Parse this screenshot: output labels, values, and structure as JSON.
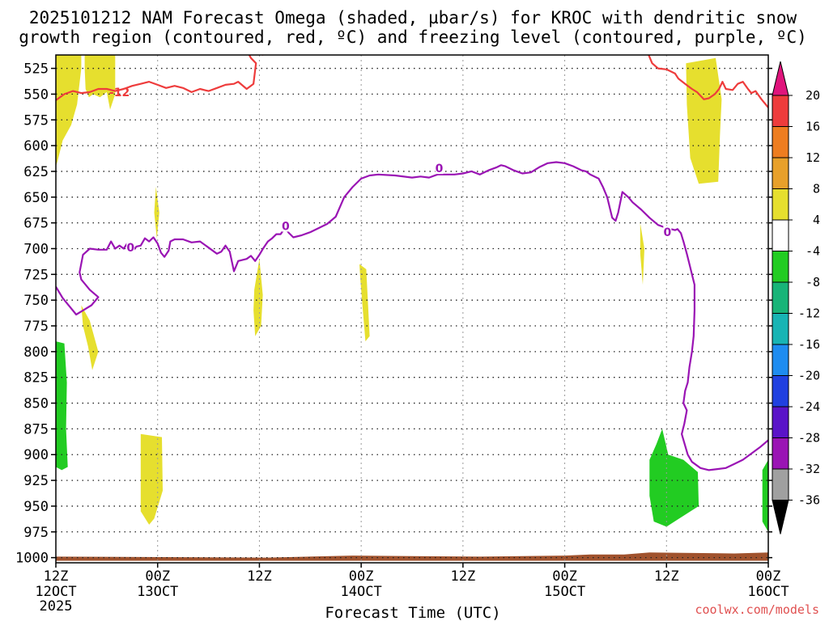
{
  "chart_data": {
    "type": "time-height",
    "title_line1": "2025101212 NAM Forecast Omega (shaded, µbar/s) for KROC with dendritic snow",
    "title_line2": "growth region (contoured, red, ºC) and freezing level (contoured, purple, ºC)",
    "xlabel": "Forecast Time (UTC)",
    "credit": "coolwx.com/models",
    "y_axis": {
      "unit": "hPa",
      "ylim": [
        512,
        1005
      ],
      "ticks": [
        525,
        550,
        575,
        600,
        625,
        650,
        675,
        700,
        725,
        750,
        775,
        800,
        825,
        850,
        875,
        900,
        925,
        950,
        975,
        1000
      ]
    },
    "x_axis": {
      "xlim_hours": [
        0,
        84
      ],
      "ticks": [
        {
          "h": 0,
          "l1": "12Z",
          "l2": "12OCT",
          "l3": "2025"
        },
        {
          "h": 12,
          "l1": "00Z",
          "l2": "13OCT",
          "l3": ""
        },
        {
          "h": 24,
          "l1": "12Z",
          "l2": "",
          "l3": ""
        },
        {
          "h": 36,
          "l1": "00Z",
          "l2": "14OCT",
          "l3": ""
        },
        {
          "h": 48,
          "l1": "12Z",
          "l2": "",
          "l3": ""
        },
        {
          "h": 60,
          "l1": "00Z",
          "l2": "15OCT",
          "l3": ""
        },
        {
          "h": 72,
          "l1": "12Z",
          "l2": "",
          "l3": ""
        },
        {
          "h": 84,
          "l1": "00Z",
          "l2": "16OCT",
          "l3": ""
        }
      ]
    },
    "colorbar": {
      "labels": [
        "20",
        "16",
        "12",
        "8",
        "4",
        "-4",
        "-8",
        "-12",
        "-16",
        "-20",
        "-24",
        "-28",
        "-32",
        "-36"
      ],
      "colors": [
        "#ee3c3c",
        "#ee7d20",
        "#e8a02a",
        "#e6df2e",
        "#ffffff",
        "#22cc22",
        "#18b478",
        "#18b4b4",
        "#1e8cf0",
        "#2040e0",
        "#5a14c8",
        "#9a14b4",
        "#a0a0a0"
      ],
      "top_arrow_color": "#e0147c",
      "bottom_arrow_color": "#000000"
    },
    "omega_regions": [
      {
        "color": "#e6df2e",
        "pts": [
          [
            0,
            512
          ],
          [
            3,
            512
          ],
          [
            3,
            525
          ],
          [
            2.5,
            560
          ],
          [
            1.8,
            580
          ],
          [
            0.8,
            595
          ],
          [
            0.2,
            615
          ],
          [
            0,
            620
          ]
        ]
      },
      {
        "color": "#e6df2e",
        "pts": [
          [
            3.4,
            512
          ],
          [
            7.0,
            512
          ],
          [
            7.0,
            550
          ],
          [
            6.4,
            565
          ],
          [
            6.0,
            548
          ],
          [
            5.2,
            553
          ],
          [
            4.4,
            550
          ],
          [
            3.9,
            553
          ],
          [
            3.5,
            545
          ],
          [
            3.4,
            525
          ]
        ]
      },
      {
        "color": "#e6df2e",
        "pts": [
          [
            3.0,
            755
          ],
          [
            4.0,
            770
          ],
          [
            5.0,
            800
          ],
          [
            4.3,
            818
          ],
          [
            3.8,
            795
          ],
          [
            3.2,
            775
          ]
        ]
      },
      {
        "color": "#e6df2e",
        "pts": [
          [
            11.8,
            640
          ],
          [
            12.2,
            665
          ],
          [
            11.9,
            690
          ],
          [
            11.6,
            665
          ]
        ]
      },
      {
        "color": "#e6df2e",
        "pts": [
          [
            10.0,
            880
          ],
          [
            12.5,
            883
          ],
          [
            12.6,
            935
          ],
          [
            11.6,
            962
          ],
          [
            11.0,
            968
          ],
          [
            10.0,
            955
          ],
          [
            10.0,
            920
          ]
        ]
      },
      {
        "color": "#e6df2e",
        "pts": [
          [
            23.4,
            740
          ],
          [
            24.0,
            710
          ],
          [
            24.4,
            745
          ],
          [
            24.2,
            775
          ],
          [
            23.5,
            785
          ],
          [
            23.3,
            760
          ]
        ]
      },
      {
        "color": "#e6df2e",
        "pts": [
          [
            35.8,
            715
          ],
          [
            36.6,
            720
          ],
          [
            37.0,
            785
          ],
          [
            36.5,
            790
          ],
          [
            36.2,
            760
          ],
          [
            35.9,
            730
          ]
        ]
      },
      {
        "color": "#e6df2e",
        "pts": [
          [
            68.9,
            675
          ],
          [
            69.4,
            700
          ],
          [
            69.2,
            735
          ],
          [
            68.9,
            705
          ]
        ]
      },
      {
        "color": "#e6df2e",
        "pts": [
          [
            74.3,
            520
          ],
          [
            77.8,
            515
          ],
          [
            78.5,
            555
          ],
          [
            78.3,
            590
          ],
          [
            78.1,
            635
          ],
          [
            75.8,
            637
          ],
          [
            74.8,
            612
          ],
          [
            74.4,
            560
          ]
        ]
      },
      {
        "color": "#22cc22",
        "pts": [
          [
            0,
            790
          ],
          [
            1.0,
            792
          ],
          [
            1.3,
            830
          ],
          [
            1.2,
            875
          ],
          [
            1.4,
            912
          ],
          [
            0.7,
            915
          ],
          [
            0,
            912
          ]
        ]
      },
      {
        "color": "#22cc22",
        "pts": [
          [
            70.0,
            905
          ],
          [
            70.8,
            890
          ],
          [
            71.5,
            875
          ],
          [
            72.2,
            900
          ],
          [
            74.0,
            905
          ],
          [
            75.7,
            917
          ],
          [
            75.8,
            950
          ],
          [
            73.5,
            962
          ],
          [
            72.0,
            970
          ],
          [
            70.5,
            965
          ],
          [
            70.0,
            940
          ]
        ]
      },
      {
        "color": "#22cc22",
        "pts": [
          [
            83.3,
            915
          ],
          [
            84.0,
            905
          ],
          [
            84.0,
            975
          ],
          [
            83.3,
            965
          ]
        ]
      }
    ],
    "ground": {
      "color": "#a0522d",
      "pts": [
        [
          0,
          1003
        ],
        [
          0,
          999
        ],
        [
          25,
          1000
        ],
        [
          35,
          998
        ],
        [
          50,
          999
        ],
        [
          60,
          998
        ],
        [
          63,
          997
        ],
        [
          67,
          997
        ],
        [
          70,
          995
        ],
        [
          80,
          996
        ],
        [
          84,
          995
        ],
        [
          84,
          1003
        ]
      ]
    },
    "dgz_contour": {
      "color": "#ee3c3c",
      "label": "-12",
      "label_at": [
        7.5,
        548
      ],
      "segments": [
        [
          [
            0,
            556
          ],
          [
            1,
            550
          ],
          [
            2,
            547
          ],
          [
            3,
            549
          ],
          [
            4,
            548
          ],
          [
            5,
            545
          ],
          [
            6,
            545
          ],
          [
            7,
            547
          ],
          [
            8,
            545
          ],
          [
            9,
            542
          ],
          [
            10,
            540
          ],
          [
            11,
            538
          ],
          [
            12,
            541
          ],
          [
            13,
            544
          ],
          [
            14,
            542
          ],
          [
            15,
            544
          ],
          [
            16,
            548
          ],
          [
            17,
            545
          ],
          [
            18,
            547
          ],
          [
            19,
            544
          ],
          [
            20,
            541
          ],
          [
            21,
            540
          ],
          [
            21.5,
            538
          ],
          [
            22.5,
            545
          ],
          [
            23.3,
            540
          ],
          [
            23.6,
            520
          ],
          [
            23,
            515
          ],
          [
            22.8,
            512
          ]
        ],
        [
          [
            24.3,
            512
          ],
          [
            24.8,
            510
          ],
          [
            25.5,
            511
          ],
          [
            26.2,
            510
          ]
        ],
        [
          [
            69.9,
            512
          ],
          [
            70.3,
            520
          ],
          [
            71,
            525
          ],
          [
            72,
            526
          ],
          [
            73,
            530
          ],
          [
            73.4,
            535
          ],
          [
            74.2,
            540
          ],
          [
            75,
            545
          ],
          [
            75.6,
            548
          ],
          [
            76.4,
            555
          ],
          [
            77,
            554
          ],
          [
            77.7,
            550
          ],
          [
            78.2,
            545
          ],
          [
            78.6,
            538
          ],
          [
            79,
            545
          ],
          [
            79.8,
            546
          ],
          [
            80.4,
            540
          ],
          [
            81,
            538
          ],
          [
            81.6,
            545
          ],
          [
            82,
            549
          ],
          [
            82.5,
            547
          ],
          [
            83.2,
            555
          ],
          [
            84,
            563
          ]
        ]
      ]
    },
    "freezing_level": {
      "color": "#9a14b4",
      "labels": [
        {
          "text": "0",
          "at": [
            8.8,
            699
          ]
        },
        {
          "text": "0",
          "at": [
            27.1,
            678
          ]
        },
        {
          "text": "0",
          "at": [
            45.2,
            622
          ]
        },
        {
          "text": "0",
          "at": [
            72.1,
            684
          ]
        }
      ],
      "pts": [
        [
          0,
          737
        ],
        [
          0.8,
          748
        ],
        [
          1.6,
          756
        ],
        [
          2.4,
          764
        ],
        [
          3.2,
          760
        ],
        [
          4.2,
          755
        ],
        [
          5.0,
          747
        ],
        [
          4.0,
          740
        ],
        [
          3.0,
          730
        ],
        [
          2.8,
          723
        ],
        [
          3.2,
          706
        ],
        [
          4,
          700
        ],
        [
          5,
          701
        ],
        [
          6,
          701
        ],
        [
          6.5,
          693
        ],
        [
          7,
          700
        ],
        [
          7.5,
          697
        ],
        [
          8,
          700
        ],
        [
          8.5,
          694
        ],
        [
          9,
          703
        ],
        [
          9.5,
          698
        ],
        [
          10,
          697
        ],
        [
          10.5,
          690
        ],
        [
          11,
          693
        ],
        [
          11.5,
          689
        ],
        [
          12,
          695
        ],
        [
          12.4,
          704
        ],
        [
          12.8,
          708
        ],
        [
          13.3,
          702
        ],
        [
          13.5,
          693
        ],
        [
          14,
          691
        ],
        [
          15,
          691
        ],
        [
          16,
          694
        ],
        [
          17,
          693
        ],
        [
          18,
          699
        ],
        [
          19,
          705
        ],
        [
          19.5,
          703
        ],
        [
          20,
          697
        ],
        [
          20.5,
          703
        ],
        [
          21,
          722
        ],
        [
          21.5,
          712
        ],
        [
          22.5,
          710
        ],
        [
          23,
          707
        ],
        [
          23.5,
          712
        ],
        [
          24,
          706
        ],
        [
          24.5,
          699
        ],
        [
          25,
          693
        ],
        [
          25.5,
          690
        ],
        [
          26,
          686
        ],
        [
          26.5,
          686
        ],
        [
          27,
          680
        ],
        [
          27.5,
          685
        ],
        [
          28,
          689
        ],
        [
          29,
          687
        ],
        [
          30,
          684
        ],
        [
          31,
          680
        ],
        [
          32,
          676
        ],
        [
          33,
          669
        ],
        [
          34,
          650
        ],
        [
          35,
          640
        ],
        [
          36,
          632
        ],
        [
          37,
          629
        ],
        [
          38,
          628
        ],
        [
          40,
          629
        ],
        [
          42,
          631
        ],
        [
          43,
          630
        ],
        [
          44,
          631
        ],
        [
          45,
          628
        ],
        [
          46,
          628
        ],
        [
          47,
          628
        ],
        [
          48,
          627
        ],
        [
          49,
          625
        ],
        [
          50,
          628
        ],
        [
          51,
          624
        ],
        [
          52,
          621
        ],
        [
          52.5,
          619
        ],
        [
          53,
          620
        ],
        [
          54,
          624
        ],
        [
          55,
          627
        ],
        [
          56,
          626
        ],
        [
          57,
          621
        ],
        [
          58,
          617
        ],
        [
          59,
          616
        ],
        [
          60,
          617
        ],
        [
          61,
          620
        ],
        [
          62,
          624
        ],
        [
          62.5,
          625
        ],
        [
          63,
          628
        ],
        [
          64,
          632
        ],
        [
          64.5,
          640
        ],
        [
          65,
          650
        ],
        [
          65.3,
          660
        ],
        [
          65.6,
          670
        ],
        [
          66,
          673
        ],
        [
          66.3,
          665
        ],
        [
          66.8,
          645
        ],
        [
          67.5,
          650
        ],
        [
          68,
          655
        ],
        [
          69,
          662
        ],
        [
          70,
          670
        ],
        [
          71,
          677
        ],
        [
          72,
          680
        ],
        [
          73,
          682
        ],
        [
          73.3,
          681
        ],
        [
          73.7,
          685
        ],
        [
          74,
          693
        ],
        [
          74.4,
          705
        ],
        [
          74.7,
          715
        ],
        [
          75,
          725
        ],
        [
          75.3,
          735
        ],
        [
          75.3,
          760
        ],
        [
          75.2,
          785
        ],
        [
          75.0,
          800
        ],
        [
          74.7,
          815
        ],
        [
          74.5,
          830
        ],
        [
          74.2,
          838
        ],
        [
          74.0,
          850
        ],
        [
          74.4,
          857
        ],
        [
          74.1,
          870
        ],
        [
          73.8,
          880
        ],
        [
          74.5,
          900
        ],
        [
          75,
          907
        ],
        [
          76,
          913
        ],
        [
          77,
          915
        ],
        [
          78,
          914
        ],
        [
          79,
          913
        ],
        [
          80,
          909
        ],
        [
          81,
          905
        ],
        [
          82,
          899
        ],
        [
          83,
          893
        ],
        [
          84,
          886
        ]
      ]
    }
  }
}
